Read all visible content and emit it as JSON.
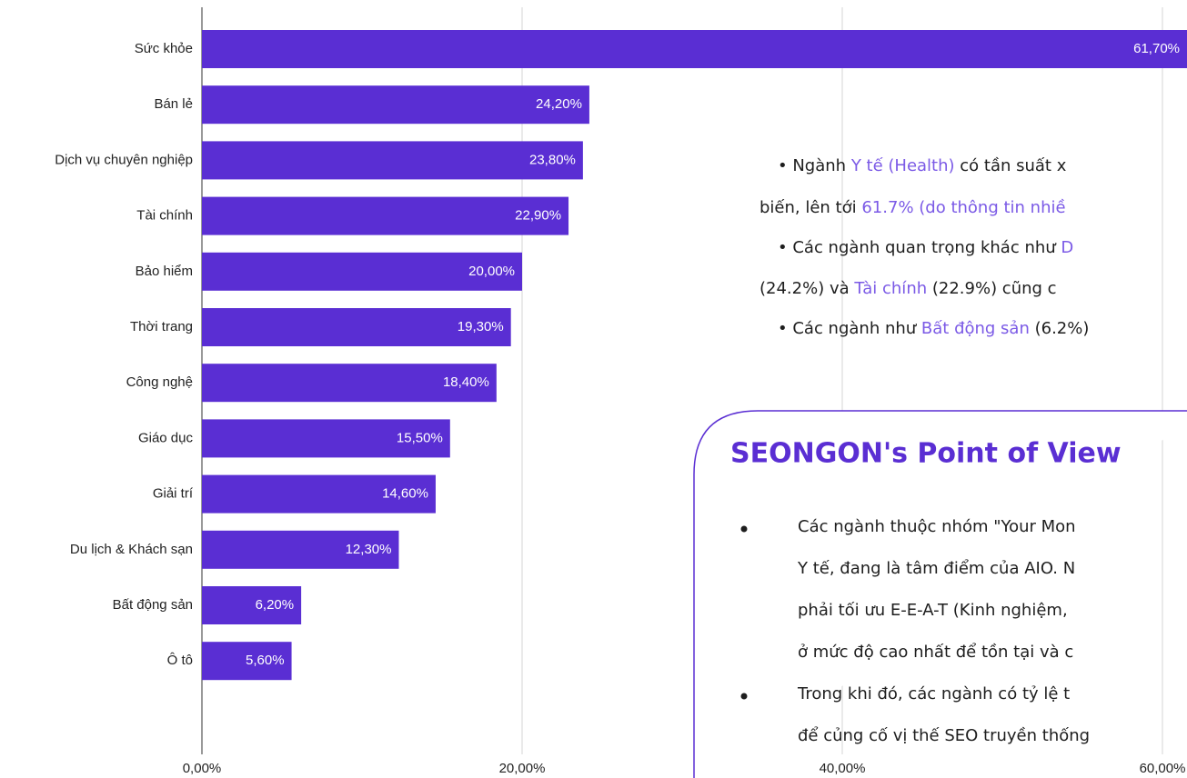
{
  "chart_data": {
    "type": "bar",
    "orientation": "horizontal",
    "categories": [
      "Sức khỏe",
      "Bán lẻ",
      "Dịch vụ chuyên nghiệp",
      "Tài chính",
      "Bảo hiểm",
      "Thời trang",
      "Công nghệ",
      "Giáo dục",
      "Giải trí",
      "Du lịch & Khách sạn",
      "Bất động sản",
      "Ô tô"
    ],
    "values": [
      61.7,
      24.2,
      23.8,
      22.9,
      20.0,
      19.3,
      18.4,
      15.5,
      14.6,
      12.3,
      6.2,
      5.6
    ],
    "value_labels": [
      "61,70%",
      "24,20%",
      "23,80%",
      "22,90%",
      "20,00%",
      "19,30%",
      "18,40%",
      "15,50%",
      "14,60%",
      "12,30%",
      "6,20%",
      "5,60%"
    ],
    "color": "#5a2ed3",
    "xlim": [
      0,
      60
    ],
    "xticks": [
      {
        "value": 0,
        "label": "0,00%"
      },
      {
        "value": 20,
        "label": "20,00%"
      },
      {
        "value": 40,
        "label": "40,00%"
      },
      {
        "value": 60,
        "label": "60,00%"
      }
    ],
    "grid": true
  },
  "notes": {
    "highlight_color": "#7b5ae6",
    "lines": [
      [
        {
          "text": "• Ngành "
        },
        {
          "text": "Y tế (Health)",
          "highlight": true
        },
        {
          "text": " có tần suất x"
        }
      ],
      [
        {
          "text": "biến, lên tới "
        },
        {
          "text": "61.7% (do thông tin nhiề",
          "highlight": true
        }
      ],
      [
        {
          "text": "• Các ngành quan trọng khác như "
        },
        {
          "text": "D",
          "highlight": true
        }
      ],
      [
        {
          "text": "(24.2%) và "
        },
        {
          "text": "Tài chính",
          "highlight": true
        },
        {
          "text": " (22.9%) cũng c"
        }
      ],
      [
        {
          "text": "• Các ngành như "
        },
        {
          "text": "Bất động sản",
          "highlight": true
        },
        {
          "text": " (6.2%)"
        }
      ]
    ]
  },
  "pov": {
    "title": "SEONGON's Point of View",
    "items": [
      {
        "lines": [
          "Các ngành thuộc nhóm \"Your Mon",
          "Y tế, đang là tâm điểm của AIO. N",
          "phải tối ưu E-E-A-T (Kinh nghiệm,",
          "ở mức độ cao nhất để tồn tại và c"
        ]
      },
      {
        "lines": [
          "Trong khi đó, các ngành có tỷ lệ t",
          "để củng cố vị thế SEO truyền thống"
        ]
      }
    ]
  }
}
